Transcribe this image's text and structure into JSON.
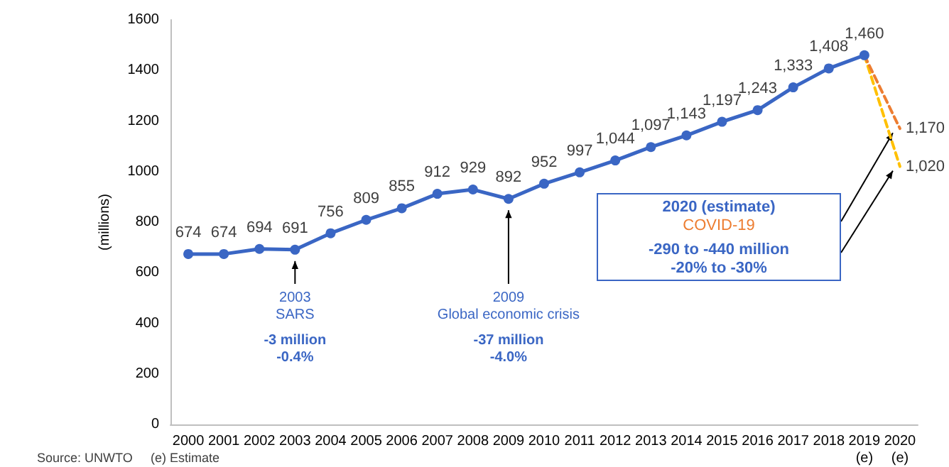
{
  "chart_data": {
    "type": "line",
    "ylabel": "(millions)",
    "categories": [
      "2000",
      "2001",
      "2002",
      "2003",
      "2004",
      "2005",
      "2006",
      "2007",
      "2008",
      "2009",
      "2010",
      "2011",
      "2012",
      "2013",
      "2014",
      "2015",
      "2016",
      "2017",
      "2018",
      "2019\n(e)",
      "2020\n(e)"
    ],
    "series": [
      {
        "color": "#3a66c4",
        "marker": "circle",
        "line_style": "solid",
        "values": [
          674,
          674,
          694,
          691,
          756,
          809,
          855,
          912,
          929,
          892,
          952,
          997,
          1044,
          1097,
          1143,
          1197,
          1243,
          1333,
          1408,
          1460,
          null
        ],
        "value_labels": [
          "674",
          "674",
          "694",
          "691",
          "756",
          "809",
          "855",
          "912",
          "929",
          "892",
          "952",
          "997",
          "1,044",
          "1,097",
          "1,143",
          "1,197",
          "1,243",
          "1,333",
          "1,408",
          "1,460",
          null
        ]
      },
      {
        "color": "#ed7d31",
        "marker": "none",
        "line_style": "dashed",
        "values": [
          null,
          null,
          null,
          null,
          null,
          null,
          null,
          null,
          null,
          null,
          null,
          null,
          null,
          null,
          null,
          null,
          null,
          null,
          null,
          1460,
          1170
        ],
        "value_labels": [
          null,
          null,
          null,
          null,
          null,
          null,
          null,
          null,
          null,
          null,
          null,
          null,
          null,
          null,
          null,
          null,
          null,
          null,
          null,
          null,
          "1,170"
        ]
      },
      {
        "color": "#ffc000",
        "marker": "none",
        "line_style": "dashed",
        "values": [
          null,
          null,
          null,
          null,
          null,
          null,
          null,
          null,
          null,
          null,
          null,
          null,
          null,
          null,
          null,
          null,
          null,
          null,
          null,
          1460,
          1020
        ],
        "value_labels": [
          null,
          null,
          null,
          null,
          null,
          null,
          null,
          null,
          null,
          null,
          null,
          null,
          null,
          null,
          null,
          null,
          null,
          null,
          null,
          null,
          "1,020"
        ]
      }
    ],
    "ylim": [
      0,
      1600
    ],
    "yticks": [
      0,
      200,
      400,
      600,
      800,
      1000,
      1200,
      1400,
      1600
    ],
    "grid": false,
    "annotations": [
      {
        "text": "2003\nSARS",
        "x": "2003",
        "y": 691
      },
      "-3 million\n-0.4%",
      {
        "text": "2009\nGlobal economic crisis",
        "x": "2009",
        "y": 892
      },
      "-37 million\n-4.0%",
      "2020 (estimate)",
      "COVID-19",
      "-290 to -440 million\n-20% to -30%",
      "Source: UNWTO",
      "(e) Estimate"
    ]
  }
}
